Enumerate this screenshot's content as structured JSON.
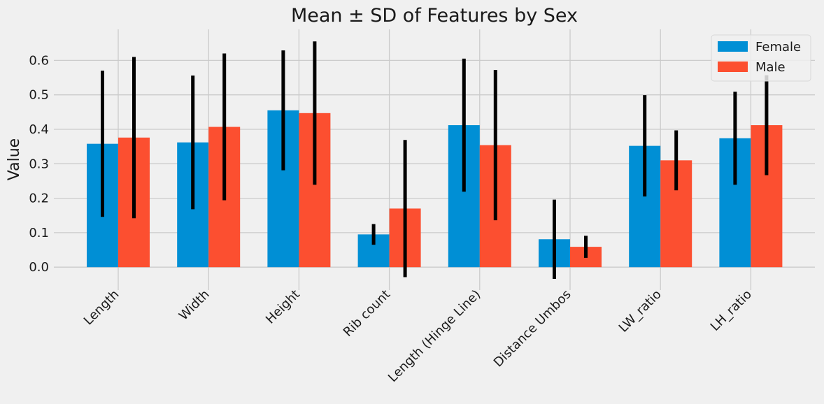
{
  "chart_data": {
    "type": "bar",
    "title": "Mean ± SD of Features by Sex",
    "xlabel": "",
    "ylabel": "Value",
    "ylim": [
      -0.03,
      0.69
    ],
    "yticks": [
      0.0,
      0.1,
      0.2,
      0.3,
      0.4,
      0.5,
      0.6
    ],
    "ytick_labels": [
      "0.0",
      "0.1",
      "0.2",
      "0.3",
      "0.4",
      "0.5",
      "0.6"
    ],
    "categories": [
      "Length",
      "Width",
      "Height",
      "Rib count",
      "Length (Hinge Line)",
      "Distance Umbos",
      "LW_ratio",
      "LH_ratio"
    ],
    "series": [
      {
        "name": "Female",
        "color": "#008fd5",
        "values": [
          0.358,
          0.362,
          0.455,
          0.095,
          0.412,
          0.081,
          0.352,
          0.374
        ],
        "errors": [
          0.212,
          0.194,
          0.174,
          0.03,
          0.193,
          0.115,
          0.147,
          0.135
        ]
      },
      {
        "name": "Male",
        "color": "#fc4f30",
        "values": [
          0.376,
          0.407,
          0.447,
          0.17,
          0.354,
          0.059,
          0.31,
          0.412
        ],
        "errors": [
          0.234,
          0.213,
          0.208,
          0.199,
          0.218,
          0.032,
          0.087,
          0.145
        ]
      }
    ],
    "grid": true,
    "legend_position": "top-right",
    "colors": {
      "background": "#f0f0f0",
      "grid": "#cbcbcb",
      "error_bar": "#000000",
      "text": "#1a1a1a"
    }
  }
}
